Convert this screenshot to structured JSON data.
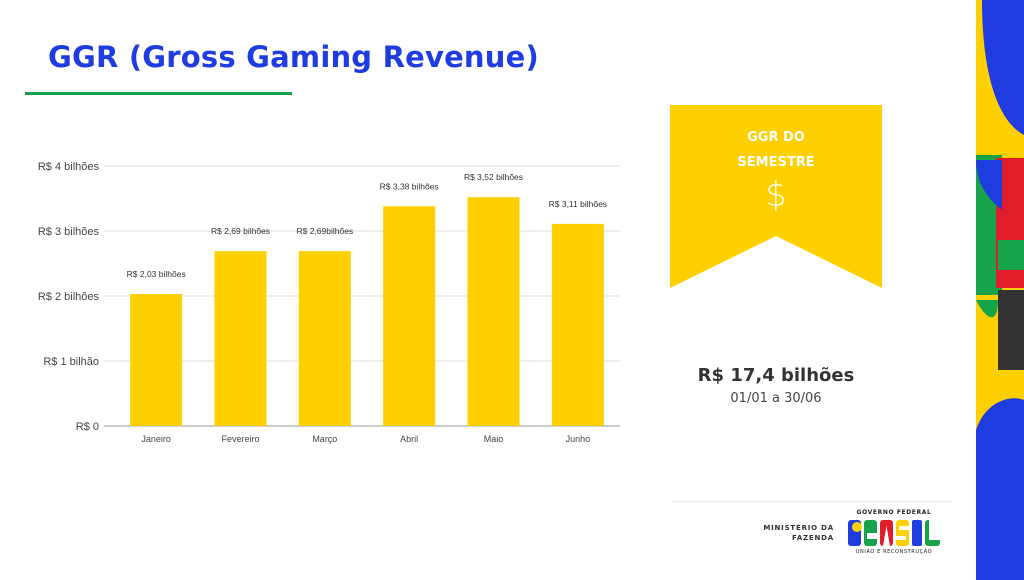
{
  "slide": {
    "title": "GGR (Gross Gaming Revenue)"
  },
  "chart_data": {
    "type": "bar",
    "categories": [
      "Janeiro",
      "Fevereiro",
      "Março",
      "Abril",
      "Maio",
      "Junho"
    ],
    "values": [
      2.03,
      2.69,
      2.69,
      3.38,
      3.52,
      3.11
    ],
    "data_labels": [
      "R$ 2,03 bilhões",
      "R$ 2,69 bilhões",
      "R$ 2,69bilhões",
      "R$ 3,38 bilhões",
      "R$ 3,52 bilhões",
      "R$ 3,11 bilhões"
    ],
    "ylim": [
      0,
      4
    ],
    "yticks": [
      0,
      1,
      2,
      3,
      4
    ],
    "ytick_labels": [
      "R$ 0",
      "R$ 1 bilhão",
      "R$ 2 bilhões",
      "R$ 3 bilhões",
      "R$ 4 bilhões"
    ],
    "grid": true,
    "bar_color": "#ffd000"
  },
  "summary": {
    "banner_line1": "GGR DO",
    "banner_line2": "SEMESTRE",
    "banner_icon": "$",
    "total": "R$ 17,4 bilhões",
    "period": "01/01 a 30/06",
    "banner_color": "#ffd000"
  },
  "footer": {
    "ministry_line1": "MINISTÉRIO DA",
    "ministry_line2": "FAZENDA",
    "gov_top": "GOVERNO FEDERAL",
    "gov_word": "BRASIL",
    "gov_bottom": "UNIÃO E RECONSTRUÇÃO"
  },
  "colors": {
    "title": "#1f3ce0",
    "underline": "#16a34a",
    "yellow": "#ffd000",
    "blue": "#1f3ce0",
    "green": "#16a34a",
    "red": "#e11d2b"
  }
}
